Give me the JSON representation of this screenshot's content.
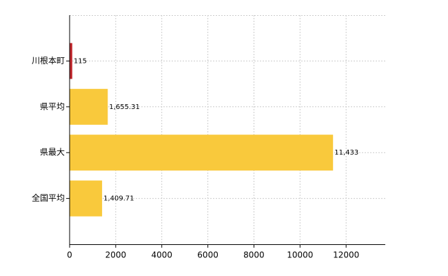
{
  "chart_data": {
    "type": "barh",
    "categories": [
      "川根本町",
      "県平均",
      "県最大",
      "全国平均"
    ],
    "values": [
      115,
      1655.31,
      11433,
      1409.71
    ],
    "value_labels": [
      "115",
      "1,655.31",
      "11,433",
      "1,409.71"
    ],
    "colors": [
      "#c0282d",
      "#f9c93c",
      "#f9c93c",
      "#f9c93c"
    ],
    "xlim": [
      0,
      13700
    ],
    "xticks": [
      0,
      2000,
      4000,
      6000,
      8000,
      10000,
      12000
    ],
    "grid": true
  }
}
